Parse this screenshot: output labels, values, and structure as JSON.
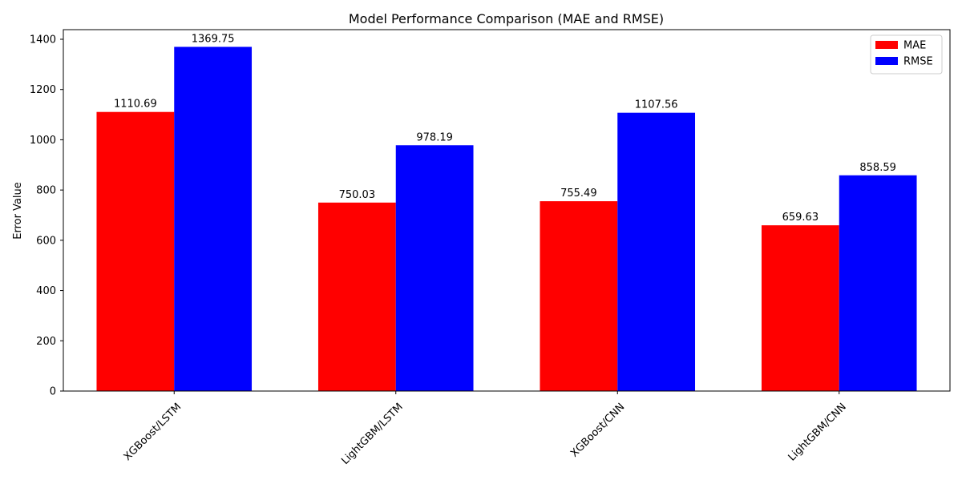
{
  "chart_data": {
    "type": "bar",
    "title": "Model Performance Comparison (MAE and RMSE)",
    "xlabel": "",
    "ylabel": "Error Value",
    "categories": [
      "XGBoost/LSTM",
      "LightGBM/LSTM",
      "XGBoost/CNN",
      "LightGBM/CNN"
    ],
    "series": [
      {
        "name": "MAE",
        "color": "#ff0000",
        "values": [
          1110.69,
          750.03,
          755.49,
          659.63
        ],
        "labels": [
          "1110.69",
          "750.03",
          "755.49",
          "659.63"
        ]
      },
      {
        "name": "RMSE",
        "color": "#0000ff",
        "values": [
          1369.75,
          978.19,
          1107.56,
          858.59
        ],
        "labels": [
          "1369.75",
          "978.19",
          "1107.56",
          "858.59"
        ]
      }
    ],
    "ylim": [
      0,
      1438.24
    ],
    "yticks": [
      0,
      200,
      400,
      600,
      800,
      1000,
      1200,
      1400
    ],
    "ytick_labels": [
      "0",
      "200",
      "400",
      "600",
      "800",
      "1000",
      "1200",
      "1400"
    ],
    "grid": false,
    "legend_position": "upper-right",
    "xtick_rotation": 45
  }
}
